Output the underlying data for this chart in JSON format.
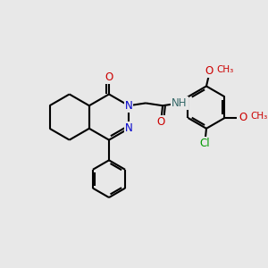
{
  "bg_color": "#e8e8e8",
  "bond_color": "#000000",
  "bond_width": 1.5,
  "atom_colors": {
    "N": "#0000cc",
    "O": "#cc0000",
    "Cl": "#009900",
    "NH": "#336666",
    "C": "#000000"
  },
  "font_size": 8.5,
  "fig_size": [
    3.0,
    3.0
  ],
  "dpi": 100
}
